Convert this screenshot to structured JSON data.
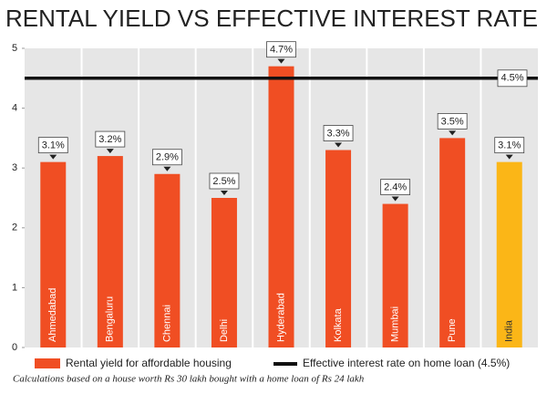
{
  "chart_data": {
    "type": "bar",
    "title": "RENTAL YIELD VS EFFECTIVE INTEREST RATE",
    "categories": [
      "Ahmedabad",
      "Bengaluru",
      "Chennai",
      "Delhi",
      "Hyderabad",
      "Kolkata",
      "Mumbai",
      "Pune",
      "India"
    ],
    "series": [
      {
        "name": "Rental yield for affordable housing",
        "color": "#f04e23",
        "colors": [
          "#f04e23",
          "#f04e23",
          "#f04e23",
          "#f04e23",
          "#f04e23",
          "#f04e23",
          "#f04e23",
          "#f04e23",
          "#fbb617"
        ],
        "values": [
          3.1,
          3.2,
          2.9,
          2.5,
          4.7,
          3.3,
          2.4,
          3.5,
          3.1
        ],
        "value_labels": [
          "3.1%",
          "3.2%",
          "2.9%",
          "2.5%",
          "4.7%",
          "3.3%",
          "2.4%",
          "3.5%",
          "3.1%"
        ]
      }
    ],
    "reference_line": {
      "name": "Effective interest rate on home loan (4.5%)",
      "value": 4.5,
      "label": "4.5%",
      "color": "#111111"
    },
    "ylim": [
      0,
      5
    ],
    "yticks": [
      0,
      1,
      2,
      3,
      4,
      5
    ],
    "note": "Calculations based on a house worth Rs 30 lakh bought with a home loan of Rs 24 lakh"
  }
}
